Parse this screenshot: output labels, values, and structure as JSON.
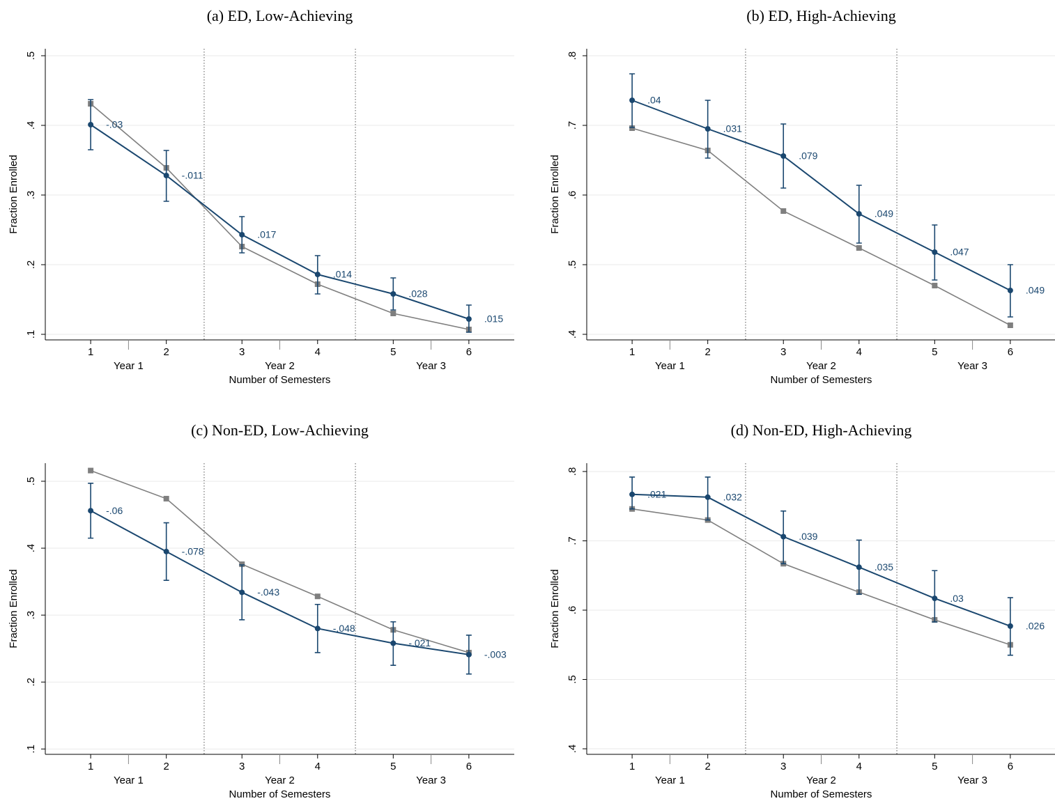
{
  "chart_data": [
    {
      "type": "line",
      "title": "(a) ED, Low-Achieving",
      "xlabel": "Number of Semesters",
      "ylabel": "Fraction Enrolled",
      "x": [
        1,
        2,
        3,
        4,
        5,
        6
      ],
      "xlim": [
        0.4,
        6.6
      ],
      "xticks": [
        1,
        2,
        3,
        4,
        5,
        6
      ],
      "year_ticks": [
        {
          "value": 1.5,
          "label": "Year 1"
        },
        {
          "value": 3.5,
          "label": "Year 2"
        },
        {
          "value": 5.5,
          "label": "Year 3"
        }
      ],
      "dividers": [
        2.5,
        4.5
      ],
      "ylim": [
        0.092,
        0.51
      ],
      "yticks": [
        {
          "value": 0.1,
          "label": ".1"
        },
        {
          "value": 0.2,
          "label": ".2"
        },
        {
          "value": 0.3,
          "label": ".3"
        },
        {
          "value": 0.4,
          "label": ".4"
        },
        {
          "value": 0.5,
          "label": ".5"
        }
      ],
      "grid": true,
      "series": [
        {
          "color": "#1a476f",
          "marker": "circle",
          "values": [
            0.401,
            0.328,
            0.243,
            0.186,
            0.158,
            0.122
          ],
          "ci_low": [
            0.365,
            0.291,
            0.217,
            0.158,
            0.135,
            0.103
          ],
          "ci_high": [
            0.437,
            0.364,
            0.269,
            0.213,
            0.181,
            0.142
          ],
          "annotations": [
            "-.03",
            "-.011",
            ".017",
            ".014",
            ".028",
            ".015"
          ]
        },
        {
          "color": "#7f7f7f",
          "marker": "square",
          "values": [
            0.431,
            0.339,
            0.226,
            0.172,
            0.13,
            0.107
          ]
        }
      ]
    },
    {
      "type": "line",
      "title": "(b) ED, High-Achieving",
      "xlabel": "Number of Semesters",
      "ylabel": "Fraction Enrolled",
      "x": [
        1,
        2,
        3,
        4,
        5,
        6
      ],
      "xlim": [
        0.4,
        6.6
      ],
      "xticks": [
        1,
        2,
        3,
        4,
        5,
        6
      ],
      "year_ticks": [
        {
          "value": 1.5,
          "label": "Year 1"
        },
        {
          "value": 3.5,
          "label": "Year 2"
        },
        {
          "value": 5.5,
          "label": "Year 3"
        }
      ],
      "dividers": [
        2.5,
        4.5
      ],
      "ylim": [
        0.392,
        0.81
      ],
      "yticks": [
        {
          "value": 0.4,
          "label": ".4"
        },
        {
          "value": 0.5,
          "label": ".5"
        },
        {
          "value": 0.6,
          "label": ".6"
        },
        {
          "value": 0.7,
          "label": ".7"
        },
        {
          "value": 0.8,
          "label": ".8"
        }
      ],
      "grid": true,
      "series": [
        {
          "color": "#1a476f",
          "marker": "circle",
          "values": [
            0.736,
            0.695,
            0.656,
            0.573,
            0.518,
            0.463
          ],
          "ci_low": [
            0.697,
            0.653,
            0.61,
            0.531,
            0.478,
            0.425
          ],
          "ci_high": [
            0.774,
            0.736,
            0.702,
            0.614,
            0.557,
            0.5
          ],
          "annotations": [
            ".04",
            ".031",
            ".079",
            ".049",
            ".047",
            ".049"
          ]
        },
        {
          "color": "#7f7f7f",
          "marker": "square",
          "values": [
            0.696,
            0.664,
            0.577,
            0.524,
            0.47,
            0.413
          ]
        }
      ]
    },
    {
      "type": "line",
      "title": "(c) Non-ED, Low-Achieving",
      "xlabel": "Number of Semesters",
      "ylabel": "Fraction Enrolled",
      "x": [
        1,
        2,
        3,
        4,
        5,
        6
      ],
      "xlim": [
        0.4,
        6.6
      ],
      "xticks": [
        1,
        2,
        3,
        4,
        5,
        6
      ],
      "year_ticks": [
        {
          "value": 1.5,
          "label": "Year 1"
        },
        {
          "value": 3.5,
          "label": "Year 2"
        },
        {
          "value": 5.5,
          "label": "Year 3"
        }
      ],
      "dividers": [
        2.5,
        4.5
      ],
      "ylim": [
        0.092,
        0.527
      ],
      "yticks": [
        {
          "value": 0.1,
          "label": ".1"
        },
        {
          "value": 0.2,
          "label": ".2"
        },
        {
          "value": 0.3,
          "label": ".3"
        },
        {
          "value": 0.4,
          "label": ".4"
        },
        {
          "value": 0.5,
          "label": ".5"
        }
      ],
      "grid": true,
      "series": [
        {
          "color": "#1a476f",
          "marker": "circle",
          "values": [
            0.456,
            0.395,
            0.334,
            0.28,
            0.258,
            0.241
          ],
          "ci_low": [
            0.415,
            0.352,
            0.293,
            0.244,
            0.225,
            0.212
          ],
          "ci_high": [
            0.497,
            0.438,
            0.375,
            0.316,
            0.29,
            0.27
          ],
          "annotations": [
            "-.06",
            "-.078",
            "-.043",
            "-.048",
            "-.021",
            "-.003"
          ]
        },
        {
          "color": "#7f7f7f",
          "marker": "square",
          "values": [
            0.516,
            0.474,
            0.376,
            0.328,
            0.278,
            0.244
          ]
        }
      ]
    },
    {
      "type": "line",
      "title": "(d) Non-ED, High-Achieving",
      "xlabel": "Number of Semesters",
      "ylabel": "Fraction Enrolled",
      "x": [
        1,
        2,
        3,
        4,
        5,
        6
      ],
      "xlim": [
        0.4,
        6.6
      ],
      "xticks": [
        1,
        2,
        3,
        4,
        5,
        6
      ],
      "year_ticks": [
        {
          "value": 1.5,
          "label": "Year 1"
        },
        {
          "value": 3.5,
          "label": "Year 2"
        },
        {
          "value": 5.5,
          "label": "Year 3"
        }
      ],
      "dividers": [
        2.5,
        4.5
      ],
      "ylim": [
        0.392,
        0.812
      ],
      "yticks": [
        {
          "value": 0.4,
          "label": ".4"
        },
        {
          "value": 0.5,
          "label": ".5"
        },
        {
          "value": 0.6,
          "label": ".6"
        },
        {
          "value": 0.7,
          "label": ".7"
        },
        {
          "value": 0.8,
          "label": ".8"
        }
      ],
      "grid": true,
      "series": [
        {
          "color": "#1a476f",
          "marker": "circle",
          "values": [
            0.767,
            0.763,
            0.706,
            0.662,
            0.617,
            0.577
          ],
          "ci_low": [
            0.746,
            0.73,
            0.667,
            0.623,
            0.583,
            0.535
          ],
          "ci_high": [
            0.792,
            0.792,
            0.743,
            0.701,
            0.657,
            0.618
          ],
          "annotations": [
            ".021",
            ".032",
            ".039",
            ".035",
            ".03",
            ".026"
          ]
        },
        {
          "color": "#7f7f7f",
          "marker": "square",
          "values": [
            0.746,
            0.73,
            0.667,
            0.626,
            0.586,
            0.55
          ]
        }
      ]
    }
  ]
}
